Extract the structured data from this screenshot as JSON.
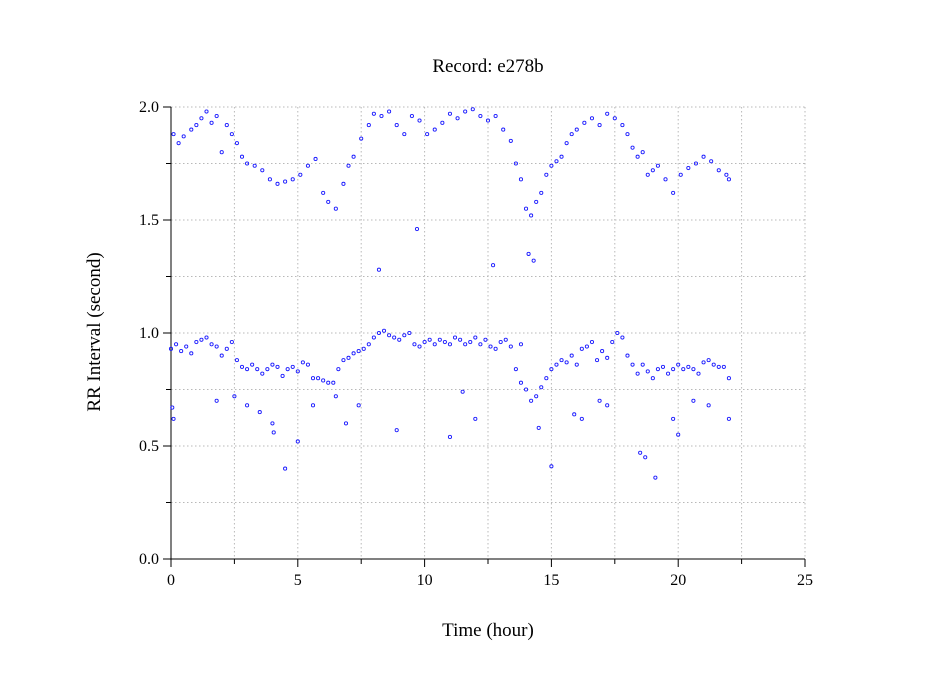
{
  "chart_data": {
    "type": "scatter",
    "title": "Record:  e278b",
    "xlabel": "Time (hour)",
    "ylabel": "RR Interval (second)",
    "xlim": [
      0,
      25
    ],
    "ylim": [
      0,
      2.0
    ],
    "x_ticks": [
      "0",
      "5",
      "10",
      "15",
      "20",
      "25"
    ],
    "y_ticks": [
      "0.0",
      "0.5",
      "1.0",
      "1.5",
      "2.0"
    ],
    "grid": true,
    "legend": "none",
    "marker": "open-circle",
    "color": "#1a1aff",
    "series": [
      {
        "x": [
          0.0,
          0.2,
          0.4,
          0.6,
          0.8,
          1.0,
          1.2,
          1.4,
          1.6,
          1.8,
          2.0,
          2.2,
          2.4,
          2.6,
          2.8,
          3.0,
          3.2,
          3.4,
          3.6,
          3.8,
          4.0,
          4.2,
          4.4,
          4.6,
          4.8,
          5.0,
          5.2,
          5.4,
          5.6,
          5.8,
          6.0,
          6.2,
          6.4,
          6.6,
          6.8,
          7.0,
          7.2,
          7.4,
          7.6,
          7.8,
          8.0,
          8.2,
          8.4,
          8.6,
          8.8,
          9.0,
          9.2,
          9.4,
          9.6,
          9.8,
          10.0,
          10.2,
          10.4,
          10.6,
          10.8,
          11.0,
          11.2,
          11.4,
          11.6,
          11.8,
          12.0,
          12.2,
          12.4,
          12.6,
          12.8,
          13.0,
          13.2,
          13.4,
          13.6,
          13.8,
          14.0,
          14.2,
          14.4,
          14.6,
          14.8,
          15.0,
          15.2,
          15.4,
          15.6,
          15.8,
          16.0,
          16.2,
          16.4,
          16.6,
          16.8,
          17.0,
          17.2,
          17.4,
          17.6,
          17.8,
          18.0,
          18.2,
          18.4,
          18.6,
          18.8,
          19.0,
          19.2,
          19.4,
          19.6,
          19.8,
          20.0,
          20.2,
          20.4,
          20.6,
          20.8,
          21.0,
          21.2,
          21.4,
          21.6,
          21.8,
          22.0
        ],
        "y": [
          0.93,
          0.95,
          0.92,
          0.94,
          0.91,
          0.96,
          0.97,
          0.98,
          0.95,
          0.94,
          0.9,
          0.93,
          0.96,
          0.88,
          0.85,
          0.84,
          0.86,
          0.84,
          0.82,
          0.84,
          0.86,
          0.85,
          0.81,
          0.84,
          0.85,
          0.83,
          0.87,
          0.86,
          0.8,
          0.8,
          0.79,
          0.78,
          0.78,
          0.84,
          0.88,
          0.89,
          0.91,
          0.92,
          0.93,
          0.95,
          0.98,
          1.0,
          1.01,
          0.99,
          0.98,
          0.97,
          0.99,
          1.0,
          0.95,
          0.94,
          0.96,
          0.97,
          0.95,
          0.97,
          0.96,
          0.95,
          0.98,
          0.97,
          0.95,
          0.96,
          0.98,
          0.95,
          0.97,
          0.94,
          0.93,
          0.96,
          0.97,
          0.94,
          0.84,
          0.78,
          0.75,
          0.7,
          0.72,
          0.76,
          0.8,
          0.84,
          0.86,
          0.88,
          0.87,
          0.9,
          0.86,
          0.93,
          0.94,
          0.96,
          0.88,
          0.92,
          0.89,
          0.96,
          1.0,
          0.98,
          0.9,
          0.86,
          0.82,
          0.86,
          0.83,
          0.8,
          0.84,
          0.85,
          0.82,
          0.84,
          0.86,
          0.84,
          0.85,
          0.84,
          0.82,
          0.87,
          0.88,
          0.86,
          0.85,
          0.85,
          0.8
        ]
      },
      {
        "x": [
          0.1,
          0.3,
          0.5,
          0.8,
          1.0,
          1.2,
          1.4,
          1.6,
          1.8,
          2.0,
          2.2,
          2.4,
          2.6,
          2.8,
          3.0,
          3.3,
          3.6,
          3.9,
          4.2,
          4.5,
          4.8,
          5.1,
          5.4,
          5.7,
          6.0,
          6.2,
          6.5,
          6.8,
          7.0,
          7.2,
          7.5,
          7.8,
          8.0,
          8.3,
          8.6,
          8.9,
          9.2,
          9.5,
          9.8,
          10.1,
          10.4,
          10.7,
          11.0,
          11.3,
          11.6,
          11.9,
          12.2,
          12.5,
          12.8,
          13.1,
          13.4,
          13.6,
          13.8,
          14.0,
          14.2,
          14.4,
          14.6,
          14.8,
          15.0,
          15.2,
          15.4,
          15.6,
          15.8,
          16.0,
          16.3,
          16.6,
          16.9,
          17.2,
          17.5,
          17.8,
          18.0,
          18.2,
          18.4,
          18.6,
          18.8,
          19.0,
          19.2,
          19.5,
          19.8,
          20.1,
          20.4,
          20.7,
          21.0,
          21.3,
          21.6,
          21.9,
          22.0
        ],
        "y": [
          1.88,
          1.84,
          1.87,
          1.9,
          1.92,
          1.95,
          1.98,
          1.93,
          1.96,
          1.8,
          1.92,
          1.88,
          1.84,
          1.78,
          1.75,
          1.74,
          1.72,
          1.68,
          1.66,
          1.67,
          1.68,
          1.7,
          1.74,
          1.77,
          1.62,
          1.58,
          1.55,
          1.66,
          1.74,
          1.78,
          1.86,
          1.92,
          1.97,
          1.96,
          1.98,
          1.92,
          1.88,
          1.96,
          1.94,
          1.88,
          1.9,
          1.93,
          1.97,
          1.95,
          1.98,
          1.99,
          1.96,
          1.94,
          1.96,
          1.9,
          1.85,
          1.75,
          1.68,
          1.55,
          1.52,
          1.58,
          1.62,
          1.7,
          1.74,
          1.76,
          1.78,
          1.84,
          1.88,
          1.9,
          1.93,
          1.95,
          1.92,
          1.97,
          1.95,
          1.92,
          1.88,
          1.82,
          1.78,
          1.8,
          1.7,
          1.72,
          1.74,
          1.68,
          1.62,
          1.7,
          1.73,
          1.75,
          1.78,
          1.76,
          1.72,
          1.7,
          1.68
        ]
      },
      {
        "x": [
          0.05,
          0.1,
          1.8,
          2.5,
          3.0,
          3.5,
          4.0,
          4.05,
          4.5,
          5.0,
          5.6,
          6.5,
          6.9,
          7.4,
          8.2,
          8.9,
          9.7,
          11.0,
          11.5,
          12.0,
          12.7,
          13.8,
          14.1,
          14.3,
          14.5,
          15.0,
          15.9,
          16.2,
          16.9,
          17.2,
          18.5,
          18.7,
          19.1,
          19.8,
          20.0,
          20.6,
          21.2,
          22.0
        ],
        "y": [
          0.67,
          0.62,
          0.7,
          0.72,
          0.68,
          0.65,
          0.6,
          0.56,
          0.4,
          0.52,
          0.68,
          0.72,
          0.6,
          0.68,
          1.28,
          0.57,
          1.46,
          0.54,
          0.74,
          0.62,
          1.3,
          0.95,
          1.35,
          1.32,
          0.58,
          0.41,
          0.64,
          0.62,
          0.7,
          0.68,
          0.47,
          0.45,
          0.36,
          0.62,
          0.55,
          0.7,
          0.68,
          0.62
        ]
      }
    ]
  }
}
